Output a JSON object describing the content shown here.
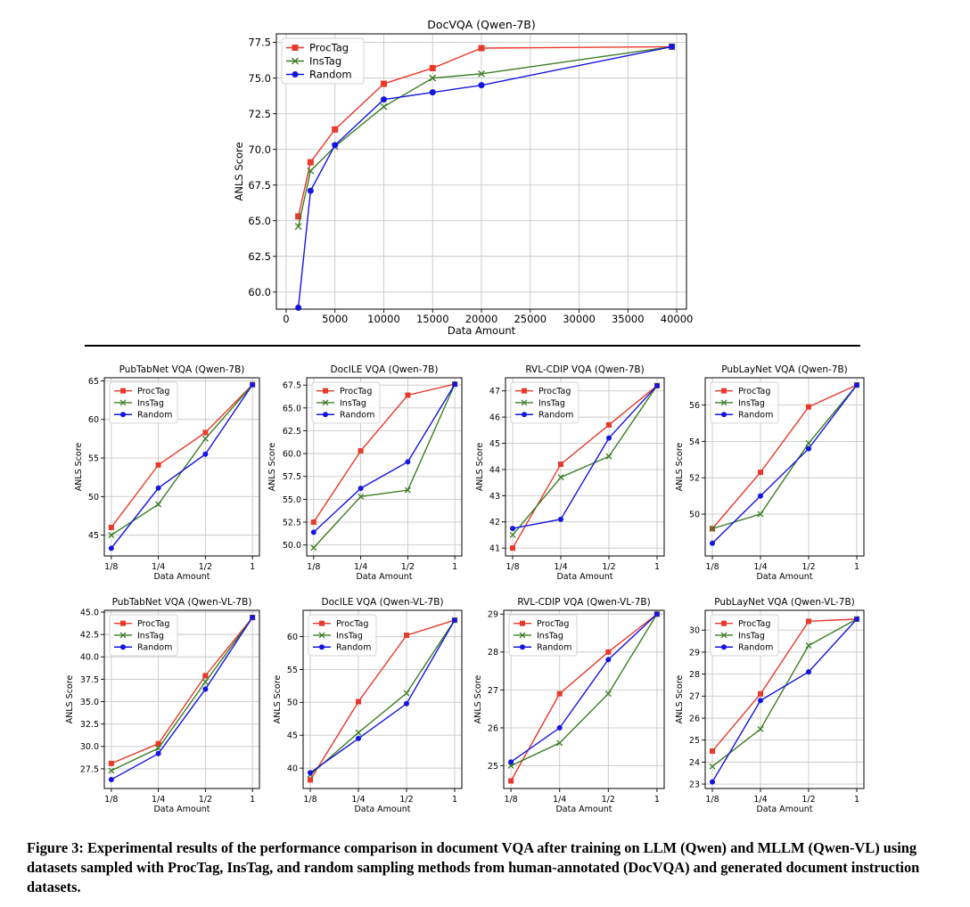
{
  "chart_data": [
    {
      "type": "line",
      "title": "DocVQA (Qwen-7B)",
      "xlabel": "Data Amount",
      "ylabel": "ANLS Score",
      "xlim": [
        -1000,
        41000
      ],
      "ylim": [
        58.8,
        78.1
      ],
      "xticks": [
        0,
        5000,
        10000,
        15000,
        20000,
        25000,
        30000,
        35000,
        40000
      ],
      "yticks": [
        60.0,
        62.5,
        65.0,
        67.5,
        70.0,
        72.5,
        75.0,
        77.5
      ],
      "ytick_decimals": 1,
      "grid": true,
      "legend": "top-left",
      "series": [
        {
          "name": "ProcTag",
          "color": "#e8392b",
          "marker": "square",
          "x": [
            1250,
            2500,
            5000,
            10000,
            15000,
            20000,
            39500
          ],
          "y": [
            65.3,
            69.1,
            71.4,
            74.6,
            75.7,
            77.1,
            77.2
          ]
        },
        {
          "name": "InsTag",
          "color": "#3a7d23",
          "marker": "x",
          "x": [
            1250,
            2500,
            5000,
            10000,
            15000,
            20000,
            39500
          ],
          "y": [
            64.6,
            68.5,
            70.2,
            73.0,
            75.0,
            75.3,
            77.2
          ]
        },
        {
          "name": "Random",
          "color": "#1515e0",
          "marker": "circle",
          "x": [
            1250,
            2500,
            5000,
            10000,
            15000,
            20000,
            39500
          ],
          "y": [
            58.9,
            67.1,
            70.3,
            73.5,
            74.0,
            74.5,
            77.2
          ]
        }
      ]
    },
    {
      "type": "line",
      "title": "PubTabNet VQA (Qwen-7B)",
      "xlabel": "Data Amount",
      "ylabel": "ANLS Score",
      "categories": [
        "1/8",
        "1/4",
        "1/2",
        "1"
      ],
      "ylim": [
        42.3,
        65.4
      ],
      "yticks": [
        45,
        50,
        55,
        60,
        65
      ],
      "ytick_decimals": 0,
      "grid": true,
      "legend": "top-left",
      "series": [
        {
          "name": "ProcTag",
          "color": "#e8392b",
          "marker": "square",
          "values": [
            46.0,
            54.1,
            58.3,
            64.5
          ]
        },
        {
          "name": "InsTag",
          "color": "#3a7d23",
          "marker": "x",
          "values": [
            45.0,
            49.0,
            57.5,
            64.5
          ]
        },
        {
          "name": "Random",
          "color": "#1515e0",
          "marker": "circle",
          "values": [
            43.3,
            51.1,
            55.5,
            64.5
          ]
        }
      ]
    },
    {
      "type": "line",
      "title": "DocILE VQA (Qwen-7B)",
      "xlabel": "Data Amount",
      "ylabel": "ANLS Score",
      "categories": [
        "1/8",
        "1/4",
        "1/2",
        "1"
      ],
      "ylim": [
        48.8,
        68.3
      ],
      "yticks": [
        50.0,
        52.5,
        55.0,
        57.5,
        60.0,
        62.5,
        65.0,
        67.5
      ],
      "ytick_decimals": 1,
      "grid": true,
      "legend": "top-left",
      "series": [
        {
          "name": "ProcTag",
          "color": "#e8392b",
          "marker": "square",
          "values": [
            52.5,
            60.3,
            66.4,
            67.6
          ]
        },
        {
          "name": "InsTag",
          "color": "#3a7d23",
          "marker": "x",
          "values": [
            49.7,
            55.3,
            56.0,
            67.6
          ]
        },
        {
          "name": "Random",
          "color": "#1515e0",
          "marker": "circle",
          "values": [
            51.4,
            56.2,
            59.1,
            67.6
          ]
        }
      ]
    },
    {
      "type": "line",
      "title": "RVL-CDIP VQA (Qwen-7B)",
      "xlabel": "Data Amount",
      "ylabel": "ANLS Score",
      "categories": [
        "1/8",
        "1/4",
        "1/2",
        "1"
      ],
      "ylim": [
        40.7,
        47.5
      ],
      "yticks": [
        41,
        42,
        43,
        44,
        45,
        46,
        47
      ],
      "ytick_decimals": 0,
      "grid": true,
      "legend": "top-left",
      "series": [
        {
          "name": "ProcTag",
          "color": "#e8392b",
          "marker": "square",
          "values": [
            41.0,
            44.2,
            45.7,
            47.2
          ]
        },
        {
          "name": "InsTag",
          "color": "#3a7d23",
          "marker": "x",
          "values": [
            41.5,
            43.7,
            44.5,
            47.2
          ]
        },
        {
          "name": "Random",
          "color": "#1515e0",
          "marker": "circle",
          "values": [
            41.75,
            42.1,
            45.2,
            47.2
          ]
        }
      ]
    },
    {
      "type": "line",
      "title": "PubLayNet VQA (Qwen-7B)",
      "xlabel": "Data Amount",
      "ylabel": "ANLS Score",
      "categories": [
        "1/8",
        "1/4",
        "1/2",
        "1"
      ],
      "ylim": [
        47.7,
        57.5
      ],
      "yticks": [
        50,
        52,
        54,
        56
      ],
      "ytick_decimals": 0,
      "grid": true,
      "legend": "top-left",
      "series": [
        {
          "name": "ProcTag",
          "color": "#e8392b",
          "marker": "square",
          "values": [
            49.2,
            52.3,
            55.9,
            57.1
          ]
        },
        {
          "name": "InsTag",
          "color": "#3a7d23",
          "marker": "x",
          "values": [
            49.2,
            50.0,
            53.9,
            57.1
          ]
        },
        {
          "name": "Random",
          "color": "#1515e0",
          "marker": "circle",
          "values": [
            48.4,
            51.0,
            53.6,
            57.1
          ]
        }
      ]
    },
    {
      "type": "line",
      "title": "PubTabNet VQA (Qwen-VL-7B)",
      "xlabel": "Data Amount",
      "ylabel": "ANLS Score",
      "categories": [
        "1/8",
        "1/4",
        "1/2",
        "1"
      ],
      "ylim": [
        25.3,
        45.2
      ],
      "yticks": [
        27.5,
        30.0,
        32.5,
        35.0,
        37.5,
        40.0,
        42.5,
        45.0
      ],
      "ytick_decimals": 1,
      "grid": true,
      "legend": "top-left",
      "series": [
        {
          "name": "ProcTag",
          "color": "#e8392b",
          "marker": "square",
          "values": [
            28.1,
            30.3,
            37.9,
            44.4
          ]
        },
        {
          "name": "InsTag",
          "color": "#3a7d23",
          "marker": "x",
          "values": [
            27.3,
            29.8,
            37.2,
            44.4
          ]
        },
        {
          "name": "Random",
          "color": "#1515e0",
          "marker": "circle",
          "values": [
            26.3,
            29.2,
            36.4,
            44.4
          ]
        }
      ]
    },
    {
      "type": "line",
      "title": "DocILE VQA (Qwen-VL-7B)",
      "xlabel": "Data Amount",
      "ylabel": "ANLS Score",
      "categories": [
        "1/8",
        "1/4",
        "1/2",
        "1"
      ],
      "ylim": [
        36.9,
        64.0
      ],
      "yticks": [
        40,
        45,
        50,
        55,
        60
      ],
      "ytick_decimals": 0,
      "grid": true,
      "legend": "top-left",
      "series": [
        {
          "name": "ProcTag",
          "color": "#e8392b",
          "marker": "square",
          "values": [
            38.2,
            50.1,
            60.2,
            62.5
          ]
        },
        {
          "name": "InsTag",
          "color": "#3a7d23",
          "marker": "x",
          "values": [
            39.0,
            45.4,
            51.4,
            62.5
          ]
        },
        {
          "name": "Random",
          "color": "#1515e0",
          "marker": "circle",
          "values": [
            39.3,
            44.5,
            49.8,
            62.5
          ]
        }
      ]
    },
    {
      "type": "line",
      "title": "RVL-CDIP VQA (Qwen-VL-7B)",
      "xlabel": "Data Amount",
      "ylabel": "ANLS Score",
      "categories": [
        "1/8",
        "1/4",
        "1/2",
        "1"
      ],
      "ylim": [
        24.4,
        29.1
      ],
      "yticks": [
        25,
        26,
        27,
        28,
        29
      ],
      "ytick_decimals": 0,
      "grid": true,
      "legend": "top-left",
      "series": [
        {
          "name": "ProcTag",
          "color": "#e8392b",
          "marker": "square",
          "values": [
            24.6,
            26.9,
            28.0,
            29.0
          ]
        },
        {
          "name": "InsTag",
          "color": "#3a7d23",
          "marker": "x",
          "values": [
            25.0,
            25.6,
            26.9,
            29.0
          ]
        },
        {
          "name": "Random",
          "color": "#1515e0",
          "marker": "circle",
          "values": [
            25.1,
            26.0,
            27.8,
            29.0
          ]
        }
      ]
    },
    {
      "type": "line",
      "title": "PubLayNet VQA (Qwen-VL-7B)",
      "xlabel": "Data Amount",
      "ylabel": "ANLS Score",
      "categories": [
        "1/8",
        "1/4",
        "1/2",
        "1"
      ],
      "ylim": [
        22.8,
        30.9
      ],
      "yticks": [
        23,
        24,
        25,
        26,
        27,
        28,
        29,
        30
      ],
      "ytick_decimals": 0,
      "grid": true,
      "legend": "top-left",
      "series": [
        {
          "name": "ProcTag",
          "color": "#e8392b",
          "marker": "square",
          "values": [
            24.5,
            27.1,
            30.4,
            30.5
          ]
        },
        {
          "name": "InsTag",
          "color": "#3a7d23",
          "marker": "x",
          "values": [
            23.8,
            25.5,
            29.3,
            30.5
          ]
        },
        {
          "name": "Random",
          "color": "#1515e0",
          "marker": "circle",
          "values": [
            23.1,
            26.8,
            28.1,
            30.5
          ]
        }
      ]
    }
  ],
  "caption": "Figure 3: Experimental results of the performance comparison in document VQA after training on LLM (Qwen) and MLLM (Qwen-VL) using datasets sampled with ProcTag, InsTag, and random sampling methods from human-annotated (DocVQA) and generated document instruction datasets."
}
